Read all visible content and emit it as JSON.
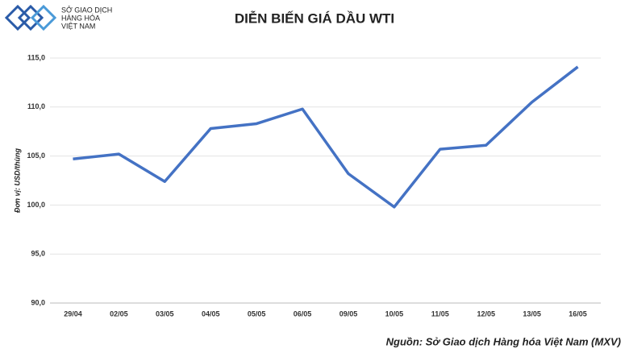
{
  "logo": [
    "SỞ GIAO DỊCH",
    "HÀNG HÓA",
    "VIỆT NAM"
  ],
  "source": "Nguồn: Sở Giao dịch Hàng hóa Việt Nam (MXV)",
  "chart_data": {
    "type": "line",
    "title": "DIỄN BIẾN GIÁ DẦU WTI",
    "y_label": "Đơn vị: USD/thùng",
    "categories": [
      "29/04",
      "02/05",
      "03/05",
      "04/05",
      "05/05",
      "06/05",
      "09/05",
      "10/05",
      "11/05",
      "12/05",
      "13/05",
      "16/05"
    ],
    "values": [
      104.7,
      105.2,
      102.4,
      107.8,
      108.3,
      109.8,
      103.2,
      99.8,
      105.7,
      106.1,
      110.5,
      114.1
    ],
    "color": "#4472c4",
    "ylim": [
      90,
      115
    ],
    "yticks": [
      {
        "value": 90,
        "label": "90,0"
      },
      {
        "value": 95,
        "label": "95,0"
      },
      {
        "value": 100,
        "label": "100,0"
      },
      {
        "value": 105,
        "label": "105,0"
      },
      {
        "value": 110,
        "label": "110,0"
      },
      {
        "value": 115,
        "label": "115,0"
      }
    ],
    "grid": true
  }
}
